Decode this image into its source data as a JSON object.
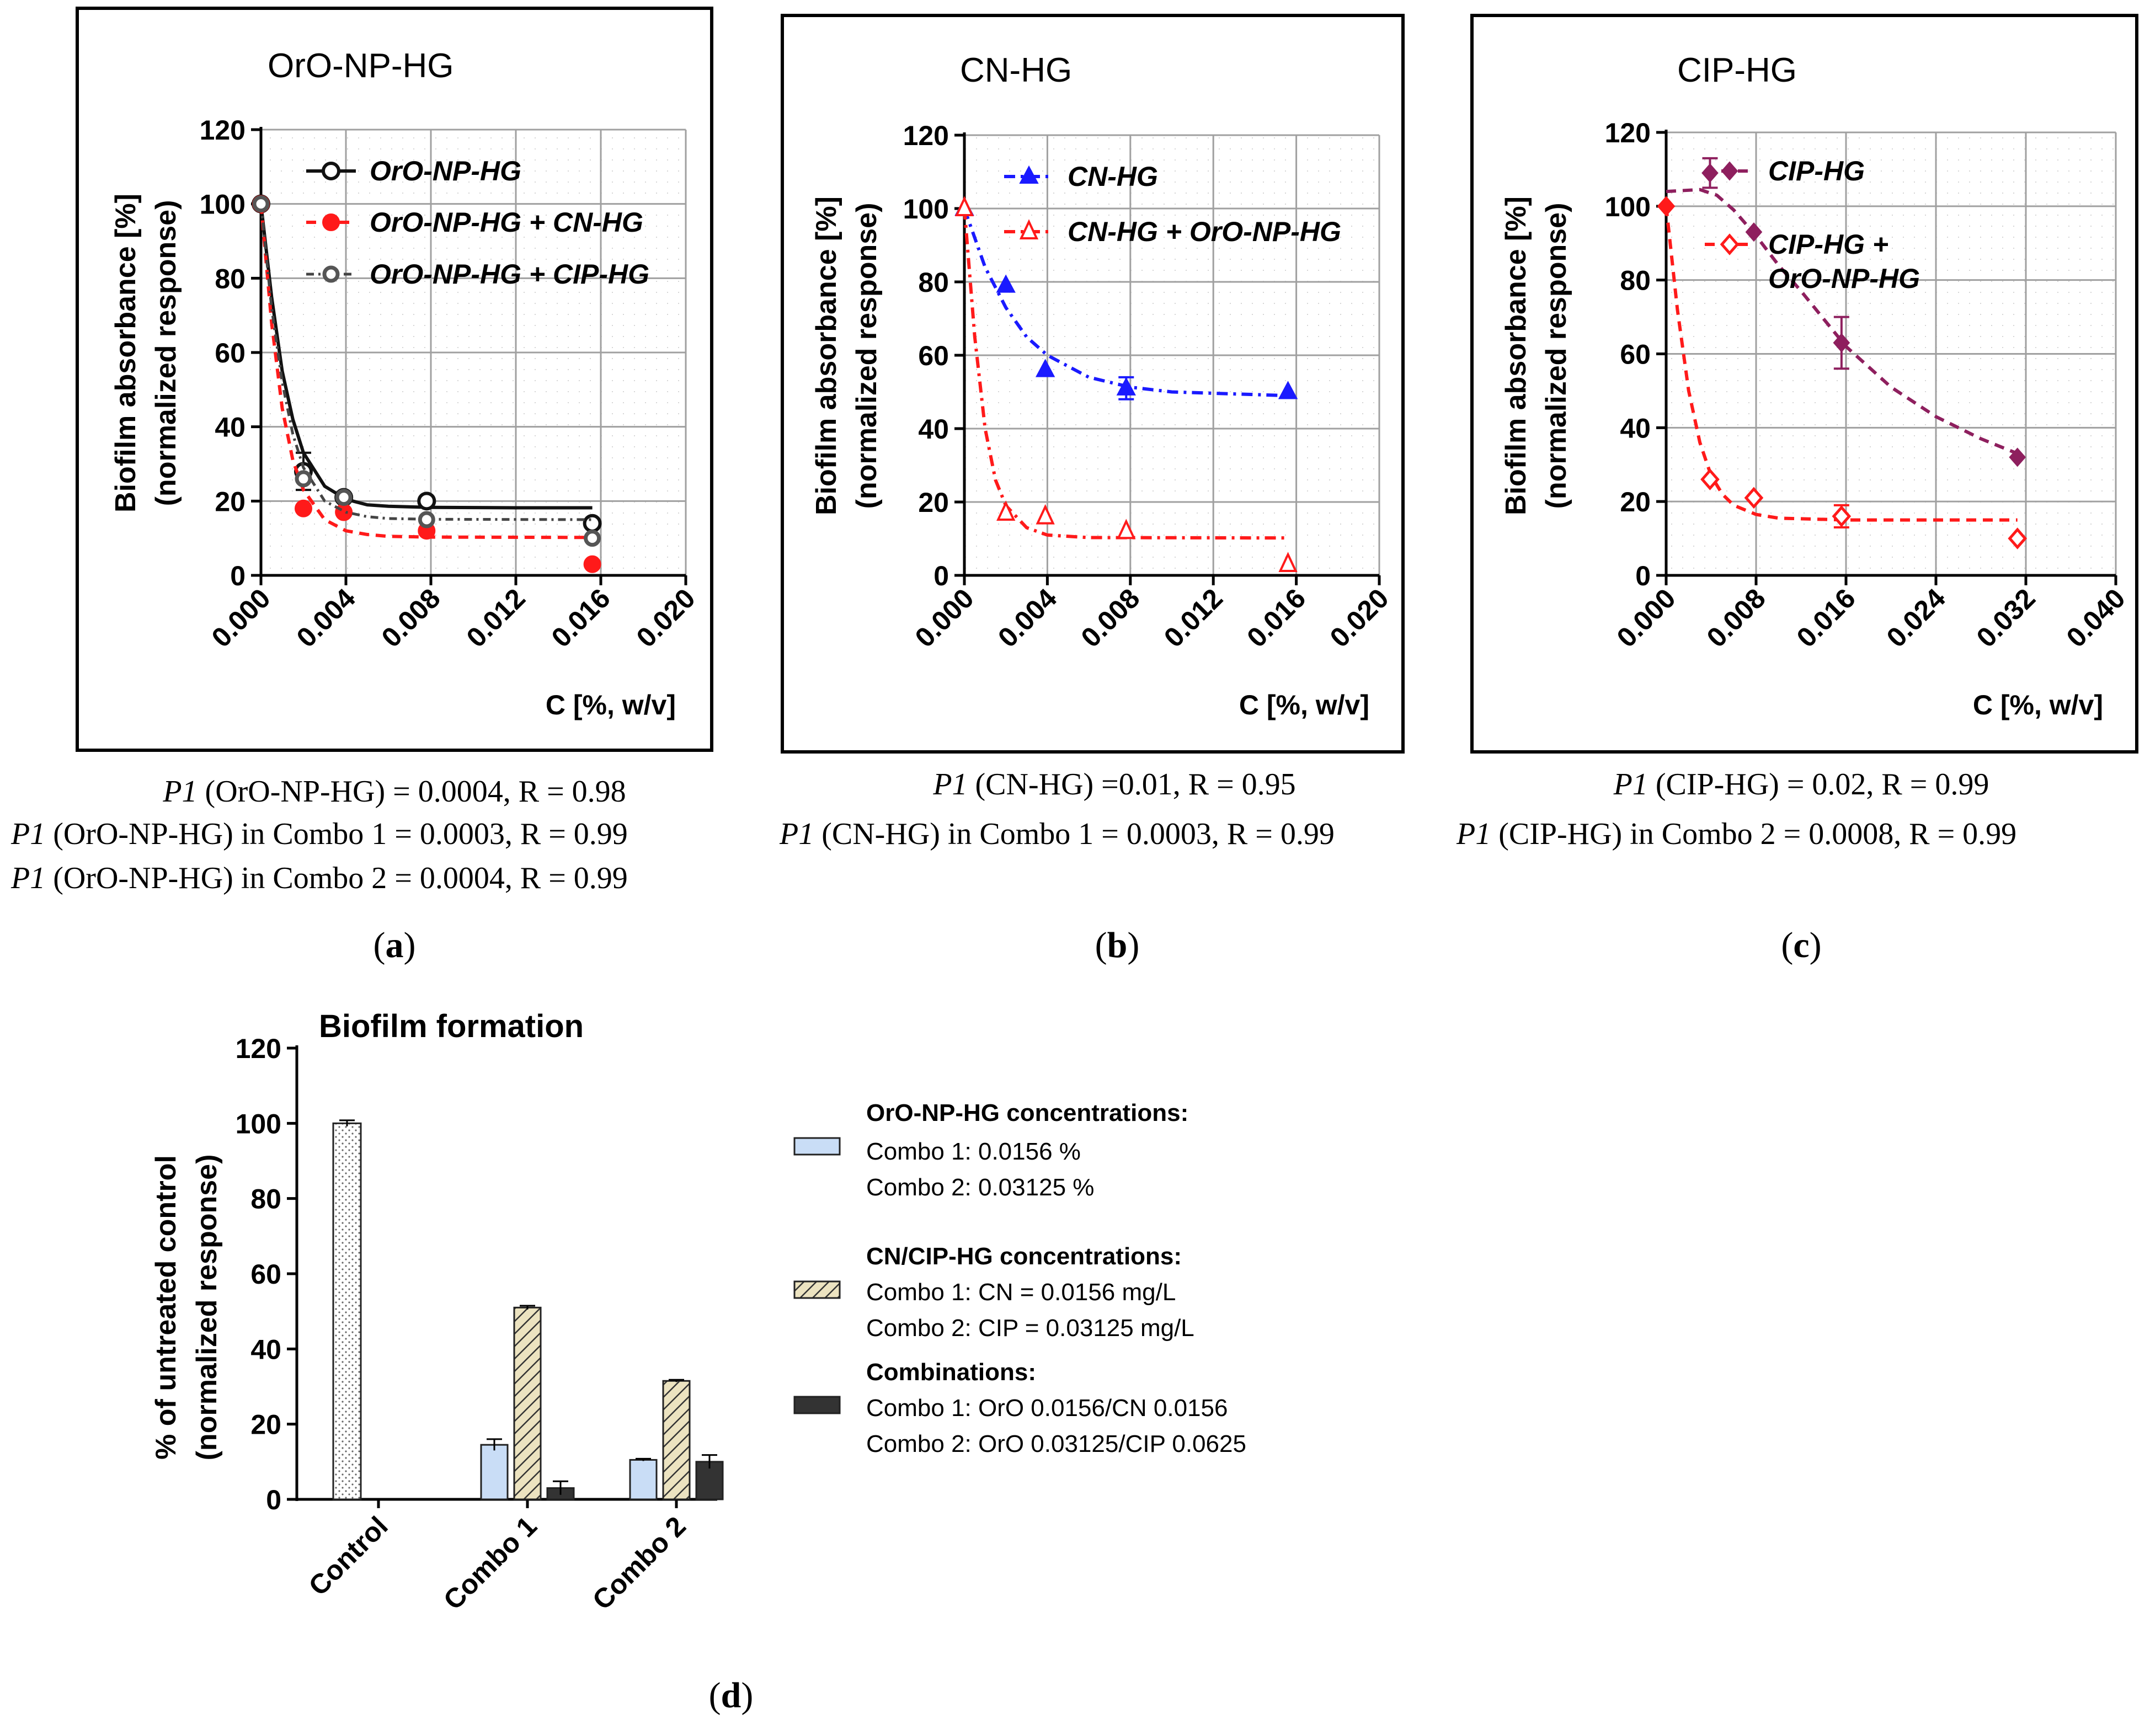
{
  "colors": {
    "black": "#111111",
    "red": "#ff1a1a",
    "blue": "#1a1aff",
    "purple": "#8e1f5e",
    "grid": "#a0a0a0",
    "light_blue": "#c9ddf6",
    "tan": "#ece3c0",
    "dark": "#333333"
  },
  "chart_data": [
    {
      "id": "a",
      "type": "scatter",
      "title": "OrO-NP-HG",
      "xlabel": "C [%, w/v]",
      "ylabel": [
        "Biofilm absorbance [%]",
        "(normalized response)"
      ],
      "xlim": [
        0,
        0.02
      ],
      "ylim": [
        0,
        120
      ],
      "xticks": [
        "0.000",
        "0.004",
        "0.008",
        "0.012",
        "0.016",
        "0.020"
      ],
      "yticks": [
        "0",
        "20",
        "40",
        "60",
        "80",
        "100",
        "120"
      ],
      "legend": "top-right",
      "grid": true,
      "series": [
        {
          "name": "OrO-NP-HG",
          "x": [
            0,
            0.002,
            0.0039,
            0.0078,
            0.0156
          ],
          "y": [
            100,
            28,
            21,
            20,
            14
          ],
          "err": [
            0,
            5,
            1,
            1,
            1
          ],
          "fit": [
            [
              0,
              100
            ],
            [
              0.0005,
              75
            ],
            [
              0.001,
              55
            ],
            [
              0.0015,
              42
            ],
            [
              0.002,
              33
            ],
            [
              0.003,
              24
            ],
            [
              0.004,
              20.5
            ],
            [
              0.005,
              19
            ],
            [
              0.006,
              18.6
            ],
            [
              0.008,
              18.3
            ],
            [
              0.012,
              18.2
            ],
            [
              0.0156,
              18.2
            ]
          ]
        },
        {
          "name": "OrO-NP-HG + CN-HG",
          "x": [
            0,
            0.002,
            0.0039,
            0.0078,
            0.0156
          ],
          "y": [
            100,
            18,
            17,
            12,
            3
          ],
          "err": [
            0,
            0,
            0,
            0,
            0
          ],
          "fit": [
            [
              0,
              100
            ],
            [
              0.0005,
              68
            ],
            [
              0.001,
              45
            ],
            [
              0.0015,
              31
            ],
            [
              0.002,
              23
            ],
            [
              0.003,
              15
            ],
            [
              0.004,
              12
            ],
            [
              0.005,
              11
            ],
            [
              0.006,
              10.5
            ],
            [
              0.008,
              10.3
            ],
            [
              0.0156,
              10.2
            ]
          ]
        },
        {
          "name": "OrO-NP-HG + CIP-HG",
          "x": [
            0,
            0.002,
            0.0039,
            0.0078,
            0.0156
          ],
          "y": [
            100,
            26,
            21,
            15,
            10
          ],
          "err": [
            0,
            0,
            0,
            0,
            0
          ],
          "fit": [
            [
              0,
              100
            ],
            [
              0.0005,
              72
            ],
            [
              0.001,
              52
            ],
            [
              0.0015,
              38
            ],
            [
              0.002,
              29
            ],
            [
              0.003,
              20
            ],
            [
              0.004,
              17
            ],
            [
              0.005,
              15.8
            ],
            [
              0.006,
              15.3
            ],
            [
              0.008,
              15.1
            ],
            [
              0.0156,
              15
            ]
          ]
        }
      ],
      "params": [
        "(OrO-NP-HG) = 0.0004, R = 0.98",
        "(OrO-NP-HG) in Combo 1 = 0.0003, R = 0.99",
        "(OrO-NP-HG) in Combo 2 = 0.0004, R = 0.99"
      ],
      "param_prefix": "P1",
      "caption": {
        "open": "(",
        "letter": "a",
        "close": ")"
      }
    },
    {
      "id": "b",
      "type": "scatter",
      "title": "CN-HG",
      "xlabel": "C [%, w/v]",
      "ylabel": [
        "Biofilm absorbance [%]",
        "(normalized response)"
      ],
      "xlim": [
        0,
        0.02
      ],
      "ylim": [
        0,
        120
      ],
      "xticks": [
        "0.000",
        "0.004",
        "0.008",
        "0.012",
        "0.016",
        "0.020"
      ],
      "yticks": [
        "0",
        "20",
        "40",
        "60",
        "80",
        "100",
        "120"
      ],
      "legend": "top-right",
      "grid": true,
      "series": [
        {
          "name": "CN-HG",
          "x": [
            0,
            0.002,
            0.0039,
            0.0078,
            0.0156
          ],
          "y": [
            100,
            79,
            56,
            51,
            50
          ],
          "err": [
            0,
            0,
            0,
            3,
            0
          ],
          "fit": [
            [
              0,
              100
            ],
            [
              0.001,
              84
            ],
            [
              0.002,
              73
            ],
            [
              0.003,
              65
            ],
            [
              0.004,
              60
            ],
            [
              0.006,
              54
            ],
            [
              0.008,
              51.3
            ],
            [
              0.01,
              50
            ],
            [
              0.0156,
              49
            ]
          ]
        },
        {
          "name": "CN-HG + OrO-NP-HG",
          "x": [
            0,
            0.002,
            0.0039,
            0.0078,
            0.0156
          ],
          "y": [
            100,
            17,
            16,
            12,
            3
          ],
          "err": [
            0,
            0,
            0,
            0,
            0
          ],
          "fit": [
            [
              0,
              100
            ],
            [
              0.0005,
              65
            ],
            [
              0.001,
              40
            ],
            [
              0.0015,
              26
            ],
            [
              0.002,
              19
            ],
            [
              0.003,
              13
            ],
            [
              0.004,
              11
            ],
            [
              0.006,
              10.3
            ],
            [
              0.0156,
              10.2
            ]
          ]
        }
      ],
      "params": [
        "(CN-HG) =0.01, R = 0.95",
        "(CN-HG) in Combo 1 = 0.0003, R = 0.99"
      ],
      "param_prefix": "P1",
      "caption": {
        "open": "(",
        "letter": "b",
        "close": ")"
      }
    },
    {
      "id": "c",
      "type": "scatter",
      "title": "CIP-HG",
      "xlabel": "C [%, w/v]",
      "ylabel": [
        "Biofilm absorbance [%]",
        "(normalized response)"
      ],
      "xlim": [
        0,
        0.04
      ],
      "ylim": [
        0,
        120
      ],
      "xticks": [
        "0.000",
        "0.008",
        "0.016",
        "0.024",
        "0.032",
        "0.040"
      ],
      "yticks": [
        "0",
        "20",
        "40",
        "60",
        "80",
        "100",
        "120"
      ],
      "legend": "top-right",
      "grid": true,
      "series": [
        {
          "name": "CIP-HG",
          "x": [
            0.0039,
            0.0078,
            0.0156,
            0.03125
          ],
          "y": [
            109,
            93,
            63,
            32
          ],
          "err": [
            4,
            0,
            7,
            0
          ],
          "fit": [
            [
              0,
              104
            ],
            [
              0.003,
              104.5
            ],
            [
              0.0045,
              103
            ],
            [
              0.006,
              99
            ],
            [
              0.008,
              92
            ],
            [
              0.01,
              84
            ],
            [
              0.012,
              77
            ],
            [
              0.016,
              62
            ],
            [
              0.02,
              51
            ],
            [
              0.024,
              43
            ],
            [
              0.028,
              37
            ],
            [
              0.03125,
              33
            ]
          ]
        },
        {
          "name": "CIP-HG + OrO-NP-HG",
          "x": [
            0,
            0.0039,
            0.0078,
            0.0156,
            0.03125
          ],
          "y": [
            100,
            26,
            21,
            16,
            10
          ],
          "err": [
            0,
            0,
            0,
            3,
            0
          ],
          "fit": [
            [
              0,
              100
            ],
            [
              0.001,
              72
            ],
            [
              0.002,
              50
            ],
            [
              0.003,
              36
            ],
            [
              0.004,
              27
            ],
            [
              0.005,
              22
            ],
            [
              0.006,
              19
            ],
            [
              0.008,
              16.5
            ],
            [
              0.01,
              15.5
            ],
            [
              0.016,
              15
            ],
            [
              0.03125,
              15
            ]
          ]
        }
      ],
      "params": [
        "(CIP-HG) = 0.02, R = 0.99",
        "(CIP-HG) in Combo 2 = 0.0008, R = 0.99"
      ],
      "param_prefix": "P1",
      "caption": {
        "open": "(",
        "letter": "c",
        "close": ")"
      }
    },
    {
      "id": "d",
      "type": "bar",
      "title": "Biofilm formation",
      "categories": [
        "Control",
        "Combo 1",
        "Combo 2"
      ],
      "ylabel": [
        "% of untreated control",
        "(normalized response)"
      ],
      "ylim": [
        0,
        120
      ],
      "yticks": [
        "0",
        "20",
        "40",
        "60",
        "80",
        "100",
        "120"
      ],
      "legend": "right",
      "series": [
        {
          "name": "OrO-NP-HG",
          "values": [
            100,
            14.5,
            10.5
          ],
          "err": [
            0.8,
            1.5,
            0.3
          ]
        },
        {
          "name": "CN/CIP-HG",
          "values": [
            null,
            51,
            31.5
          ],
          "err": [
            null,
            0.5,
            0.3
          ]
        },
        {
          "name": "Combinations",
          "values": [
            null,
            3,
            10
          ],
          "err": [
            null,
            1.8,
            1.8
          ]
        }
      ],
      "legend_groups": [
        {
          "title": "OrO-NP-HG concentrations:",
          "lines": [
            "Combo 1: 0.0156 %",
            "Combo 2: 0.03125 %"
          ]
        },
        {
          "title": "CN/CIP-HG concentrations:",
          "lines": [
            "Combo 1: CN = 0.0156 mg/L",
            "Combo 2: CIP = 0.03125 mg/L"
          ]
        },
        {
          "title": "Combinations:",
          "lines": [
            "Combo 1: OrO 0.0156/CN 0.0156",
            "Combo 2: OrO 0.03125/CIP 0.0625"
          ]
        }
      ],
      "caption": {
        "open": "(",
        "letter": "d",
        "close": ")"
      }
    }
  ]
}
